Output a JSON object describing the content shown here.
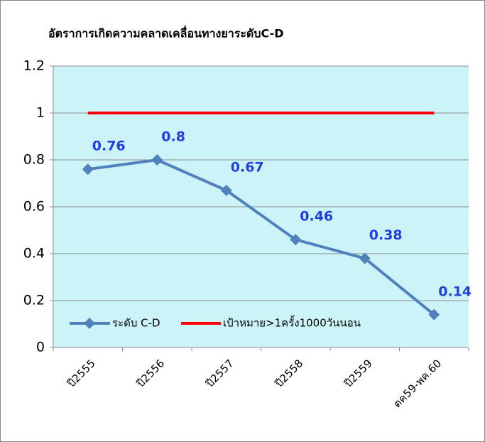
{
  "chart_data": {
    "type": "line",
    "title": "อัตราการเกิดความคลาดเคลื่อนทางยาระดับC-D",
    "categories": [
      "ปี2555",
      "ปี2556",
      "ปี2557",
      "ปี2558",
      "ปี2559",
      "ตค59-พค.60"
    ],
    "series": [
      {
        "name": "ระดับ C-D",
        "color": "#4f81bd",
        "values": [
          0.76,
          0.8,
          0.67,
          0.46,
          0.38,
          0.14
        ]
      },
      {
        "name": "เป้าหมาย>1ครั้ง1000วันนอน",
        "color": "#ff0000",
        "values": [
          1,
          1,
          1,
          1,
          1,
          1
        ]
      }
    ],
    "data_label_color": "#1f3fe0",
    "plot_background": "#ccf4f8",
    "ylim": [
      0,
      1.2
    ],
    "yticks": [
      0,
      0.2,
      0.4,
      0.6,
      0.8,
      1,
      1.2
    ],
    "grid": true
  }
}
